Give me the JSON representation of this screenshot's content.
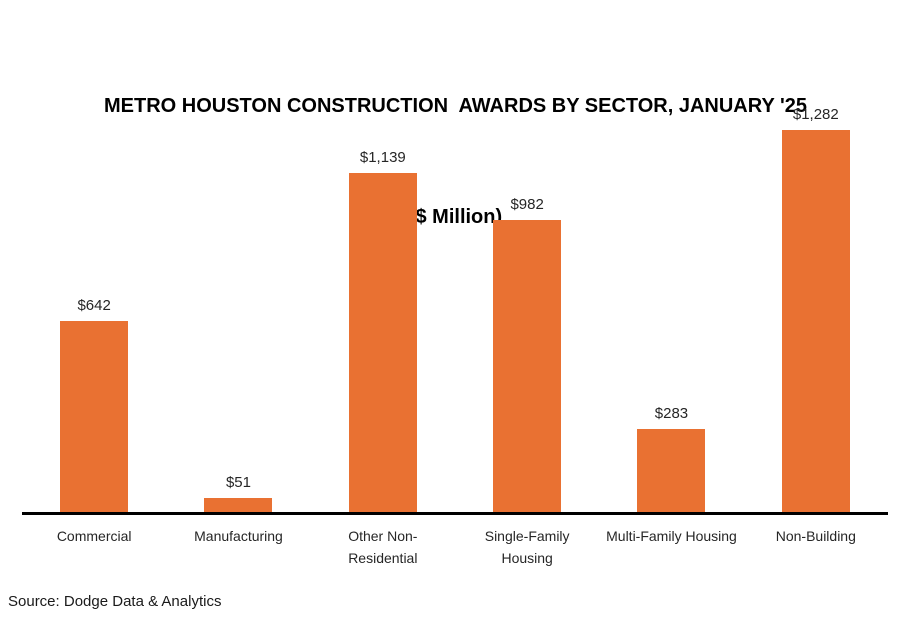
{
  "title": {
    "line1": "METRO HOUSTON CONSTRUCTION  AWARDS BY SECTOR, JANUARY '25",
    "line2": "($ Million)"
  },
  "source": "Source: Dodge Data & Analytics",
  "colors": {
    "bar": "#E97132",
    "axis": "#000000",
    "label": "#262626"
  },
  "chart_data": {
    "type": "bar",
    "title": "METRO HOUSTON CONSTRUCTION AWARDS BY SECTOR, JANUARY '25 ($ Million)",
    "categories": [
      "Commercial",
      "Manufacturing",
      "Other Non-\nResidential",
      "Single-Family\nHousing",
      "Multi-Family Housing",
      "Non-Building"
    ],
    "values": [
      642,
      51,
      1139,
      982,
      283,
      1282
    ],
    "data_labels": [
      "$642",
      "$51",
      "$1,139",
      "$982",
      "$283",
      "$1,282"
    ],
    "xlabel": "",
    "ylabel": "",
    "ylim": [
      0,
      1400
    ],
    "grid": false,
    "legend": false,
    "bar_color": "#E97132",
    "annotations": [
      "Source: Dodge Data & Analytics"
    ]
  }
}
